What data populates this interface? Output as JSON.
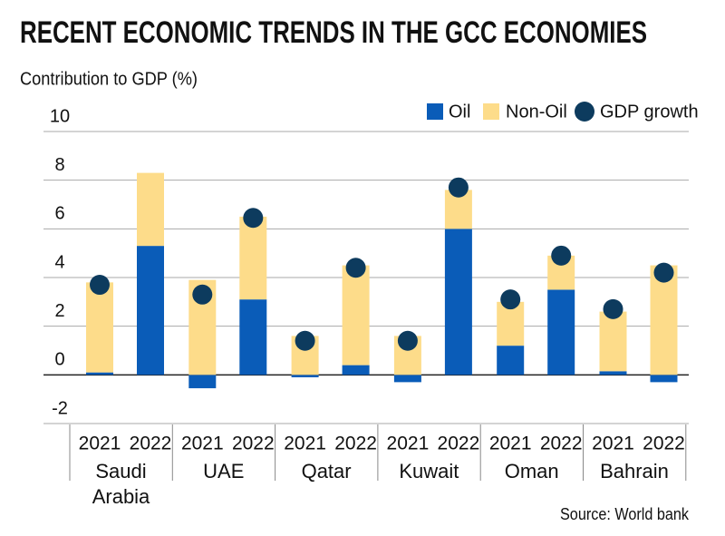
{
  "chart_data": {
    "type": "bar",
    "stacked": true,
    "title": "RECENT ECONOMIC TRENDS IN THE GCC ECONOMIES",
    "y_label": "Contribution to GDP (%)",
    "source": "Source: World bank",
    "categories": [
      "2021",
      "2022",
      "2021",
      "2022",
      "2021",
      "2022",
      "2021",
      "2022",
      "2021",
      "2022",
      "2021",
      "2022"
    ],
    "groups": [
      "Saudi Arabia",
      "UAE",
      "Qatar",
      "Kuwait",
      "Oman",
      "Bahrain"
    ],
    "series": [
      {
        "name": "Oil",
        "type": "bar",
        "color": "#0a5cb8",
        "values": [
          0.1,
          5.3,
          -0.55,
          3.1,
          -0.1,
          0.4,
          -0.3,
          6.0,
          1.2,
          3.5,
          0.15,
          -0.3
        ]
      },
      {
        "name": "Non-Oil",
        "type": "bar",
        "color": "#fddc8a",
        "values": [
          3.7,
          3.0,
          3.9,
          3.4,
          1.6,
          4.1,
          1.6,
          1.6,
          1.8,
          1.4,
          2.45,
          4.5
        ]
      },
      {
        "name": "GDP growth",
        "type": "dot",
        "color": "#0d3b5e",
        "values": [
          3.7,
          null,
          3.3,
          6.45,
          1.4,
          4.4,
          1.4,
          7.7,
          3.1,
          4.9,
          2.7,
          4.2
        ]
      }
    ],
    "ylim": [
      -2,
      10
    ],
    "yticks": [
      -2,
      0,
      2,
      4,
      6,
      8,
      10
    ],
    "grid": true,
    "legend": "top-right"
  }
}
